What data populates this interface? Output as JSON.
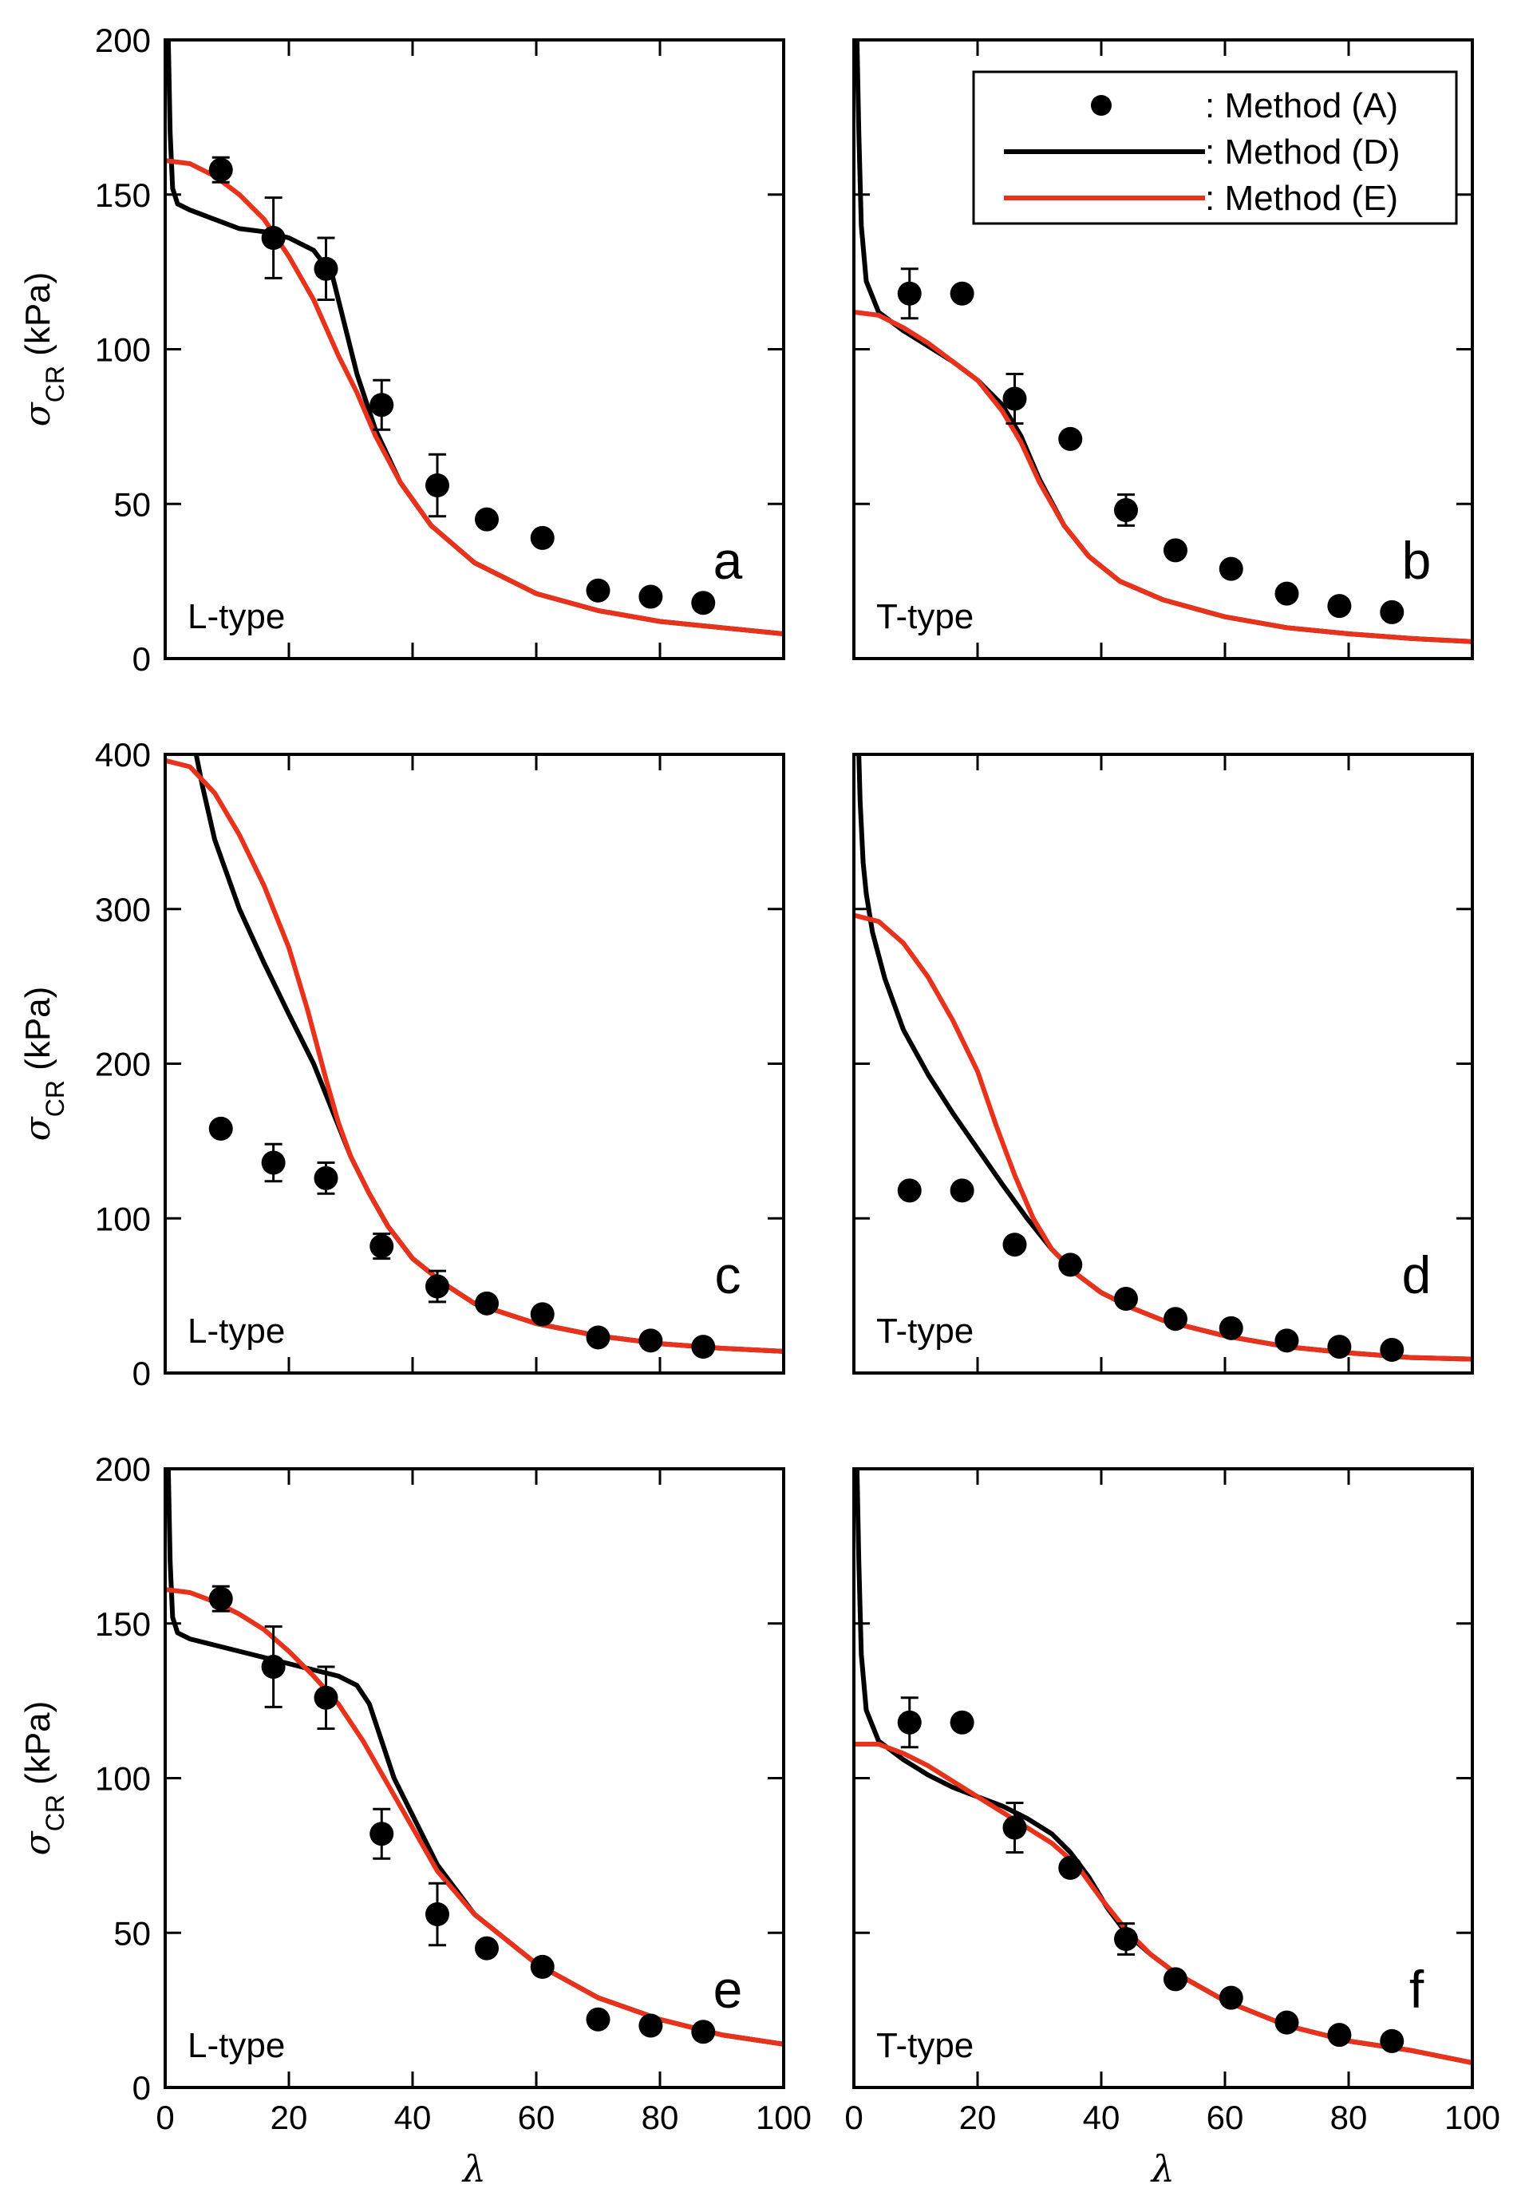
{
  "figure": {
    "legend": [
      {
        "key": "A",
        "label": ": Method (A)",
        "style": "marker",
        "color": "#000000"
      },
      {
        "key": "D",
        "label": ": Method (D)",
        "style": "line",
        "color": "#000000"
      },
      {
        "key": "E",
        "label": ": Method (E)",
        "style": "line",
        "color": "#e8321c"
      }
    ],
    "xlabel": "λ",
    "ylabel_symbol": "σ",
    "ylabel_sub": "CR",
    "ylabel_unit": " (kPa)"
  },
  "chart_data": [
    {
      "panel": "a",
      "type_label": "L-type",
      "chart_type": "line+scatter",
      "xlim": [
        0,
        100
      ],
      "ylim": [
        0,
        200
      ],
      "xticks": [
        0,
        20,
        40,
        60,
        80,
        100
      ],
      "yticks": [
        0,
        50,
        100,
        150,
        200
      ],
      "show_xticklabels": false,
      "show_yticklabels": true,
      "show_legend": false,
      "series": [
        {
          "name": ": Method (A)",
          "kind": "points",
          "x": [
            9,
            17.5,
            26,
            35,
            44,
            52,
            61,
            70,
            78.5,
            87
          ],
          "y": [
            158,
            136,
            126,
            82,
            56,
            45,
            39,
            22,
            20,
            18
          ],
          "err": [
            4,
            13,
            10,
            8,
            10,
            0,
            0,
            0,
            0,
            0
          ]
        },
        {
          "name": ": Method (D)",
          "kind": "line",
          "color": "#000000",
          "x": [
            0.5,
            0.8,
            1.2,
            2,
            4,
            8,
            12,
            16,
            20,
            24,
            27,
            29,
            31,
            34,
            38,
            43,
            50,
            60,
            70,
            80,
            90,
            100
          ],
          "y": [
            200,
            170,
            152,
            147,
            145,
            142,
            139,
            138,
            136,
            132,
            124,
            108,
            92,
            74,
            57,
            43,
            31,
            21,
            15.5,
            12,
            10,
            8
          ]
        },
        {
          "name": ": Method (E)",
          "kind": "line",
          "color": "#e8321c",
          "x": [
            0,
            4,
            8,
            12,
            16,
            20,
            24,
            28,
            31,
            34,
            38,
            43,
            50,
            60,
            70,
            80,
            90,
            100
          ],
          "y": [
            161,
            160,
            156,
            150,
            142,
            130,
            116,
            98,
            86,
            72,
            57,
            43,
            31,
            21,
            15.5,
            12,
            10,
            8
          ]
        }
      ]
    },
    {
      "panel": "b",
      "type_label": "T-type",
      "chart_type": "line+scatter",
      "xlim": [
        0,
        100
      ],
      "ylim": [
        0,
        200
      ],
      "xticks": [
        0,
        20,
        40,
        60,
        80,
        100
      ],
      "yticks": [
        0,
        50,
        100,
        150,
        200
      ],
      "show_xticklabels": false,
      "show_yticklabels": false,
      "show_legend": true,
      "series": [
        {
          "name": ": Method (A)",
          "kind": "points",
          "x": [
            9,
            17.5,
            26,
            35,
            44,
            52,
            61,
            70,
            78.5,
            87
          ],
          "y": [
            118,
            118,
            84,
            71,
            48,
            35,
            29,
            21,
            17,
            15
          ],
          "err": [
            8,
            0,
            8,
            0,
            5,
            0,
            0,
            0,
            0,
            0
          ]
        },
        {
          "name": ": Method (D)",
          "kind": "line",
          "color": "#000000",
          "x": [
            0.5,
            0.8,
            1.2,
            2,
            4,
            8,
            12,
            16,
            20,
            24,
            27,
            30,
            34,
            38,
            43,
            50,
            60,
            70,
            80,
            90,
            100
          ],
          "y": [
            200,
            170,
            140,
            122,
            112,
            106,
            101,
            96,
            90,
            82,
            72,
            58,
            43,
            33,
            25,
            19,
            13.5,
            10,
            8,
            6.5,
            5.5
          ]
        },
        {
          "name": ": Method (E)",
          "kind": "line",
          "color": "#e8321c",
          "x": [
            0,
            4,
            8,
            12,
            16,
            20,
            24,
            27,
            30,
            34,
            38,
            43,
            50,
            60,
            70,
            80,
            90,
            100
          ],
          "y": [
            112,
            111,
            107,
            102,
            96,
            90,
            80,
            70,
            57,
            43,
            33,
            25,
            19,
            13.5,
            10,
            8,
            6.5,
            5.5
          ]
        }
      ]
    },
    {
      "panel": "c",
      "type_label": "L-type",
      "chart_type": "line+scatter",
      "xlim": [
        0,
        100
      ],
      "ylim": [
        0,
        400
      ],
      "xticks": [
        0,
        20,
        40,
        60,
        80,
        100
      ],
      "yticks": [
        0,
        100,
        200,
        300,
        400
      ],
      "show_xticklabels": false,
      "show_yticklabels": true,
      "show_legend": false,
      "series": [
        {
          "name": ": Method (A)",
          "kind": "points",
          "x": [
            9,
            17.5,
            26,
            35,
            44,
            52,
            61,
            70,
            78.5,
            87
          ],
          "y": [
            158,
            136,
            126,
            82,
            56,
            45,
            38,
            23,
            21,
            17
          ],
          "err": [
            0,
            12,
            10,
            8,
            10,
            0,
            0,
            0,
            0,
            0
          ]
        },
        {
          "name": ": Method (D)",
          "kind": "line",
          "color": "#000000",
          "x": [
            5,
            6,
            8,
            12,
            16,
            20,
            24,
            26,
            28,
            30,
            33,
            36,
            40,
            45,
            50,
            60,
            70,
            80,
            90,
            100
          ],
          "y": [
            400,
            380,
            345,
            300,
            265,
            232,
            200,
            180,
            160,
            140,
            116,
            95,
            74,
            58,
            45,
            32,
            24,
            19,
            16,
            14
          ]
        },
        {
          "name": ": Method (E)",
          "kind": "line",
          "color": "#e8321c",
          "x": [
            0,
            4,
            8,
            12,
            16,
            20,
            23,
            26,
            28,
            30,
            33,
            36,
            40,
            45,
            50,
            60,
            70,
            80,
            90,
            100
          ],
          "y": [
            396,
            392,
            375,
            348,
            315,
            275,
            235,
            190,
            162,
            140,
            116,
            95,
            74,
            58,
            45,
            32,
            24,
            19,
            16,
            14
          ]
        }
      ]
    },
    {
      "panel": "d",
      "type_label": "T-type",
      "chart_type": "line+scatter",
      "xlim": [
        0,
        100
      ],
      "ylim": [
        0,
        400
      ],
      "xticks": [
        0,
        20,
        40,
        60,
        80,
        100
      ],
      "yticks": [
        0,
        100,
        200,
        300,
        400
      ],
      "show_xticklabels": false,
      "show_yticklabels": false,
      "show_legend": false,
      "series": [
        {
          "name": ": Method (A)",
          "kind": "points",
          "x": [
            9,
            17.5,
            26,
            35,
            44,
            52,
            61,
            70,
            78.5,
            87
          ],
          "y": [
            118,
            118,
            83,
            70,
            48,
            35,
            29,
            21,
            17,
            15
          ],
          "err": [
            0,
            0,
            0,
            0,
            0,
            0,
            0,
            0,
            0,
            0
          ]
        },
        {
          "name": ": Method (D)",
          "kind": "line",
          "color": "#000000",
          "x": [
            0.8,
            1,
            1.5,
            2,
            3,
            5,
            8,
            12,
            16,
            20,
            24,
            28,
            32,
            36,
            40,
            45,
            50,
            60,
            70,
            80,
            90,
            100
          ],
          "y": [
            400,
            370,
            330,
            310,
            285,
            255,
            222,
            193,
            168,
            145,
            122,
            100,
            80,
            64,
            52,
            42,
            34,
            24,
            17,
            13,
            10,
            9
          ]
        },
        {
          "name": ": Method (E)",
          "kind": "line",
          "color": "#e8321c",
          "x": [
            0,
            4,
            8,
            12,
            16,
            20,
            23,
            26,
            29,
            32,
            36,
            40,
            45,
            50,
            60,
            70,
            80,
            90,
            100
          ],
          "y": [
            296,
            292,
            278,
            256,
            228,
            195,
            160,
            128,
            100,
            80,
            64,
            52,
            42,
            34,
            24,
            17,
            13,
            10,
            9
          ]
        }
      ]
    },
    {
      "panel": "e",
      "type_label": "L-type",
      "chart_type": "line+scatter",
      "xlim": [
        0,
        100
      ],
      "ylim": [
        0,
        200
      ],
      "xticks": [
        0,
        20,
        40,
        60,
        80,
        100
      ],
      "yticks": [
        0,
        50,
        100,
        150,
        200
      ],
      "show_xticklabels": true,
      "show_yticklabels": true,
      "show_legend": false,
      "series": [
        {
          "name": ": Method (A)",
          "kind": "points",
          "x": [
            9,
            17.5,
            26,
            35,
            44,
            52,
            61,
            70,
            78.5,
            87
          ],
          "y": [
            158,
            136,
            126,
            82,
            56,
            45,
            39,
            22,
            20,
            18
          ],
          "err": [
            4,
            13,
            10,
            8,
            10,
            0,
            0,
            0,
            0,
            0
          ]
        },
        {
          "name": ": Method (D)",
          "kind": "line",
          "color": "#000000",
          "x": [
            0.5,
            0.8,
            1.2,
            2,
            4,
            8,
            12,
            16,
            20,
            24,
            28,
            31,
            33,
            35,
            37,
            40,
            44,
            50,
            60,
            70,
            80,
            90,
            100
          ],
          "y": [
            200,
            170,
            152,
            147,
            145,
            143,
            141,
            139,
            137,
            135,
            133,
            130,
            124,
            112,
            100,
            88,
            72,
            56,
            40,
            29,
            22,
            17,
            14
          ]
        },
        {
          "name": ": Method (E)",
          "kind": "line",
          "color": "#e8321c",
          "x": [
            0,
            4,
            8,
            12,
            16,
            20,
            24,
            28,
            32,
            36,
            40,
            44,
            50,
            60,
            70,
            80,
            90,
            100
          ],
          "y": [
            161,
            160,
            157,
            153,
            148,
            141,
            133,
            124,
            112,
            98,
            84,
            70,
            56,
            40,
            29,
            22,
            17,
            14
          ]
        }
      ]
    },
    {
      "panel": "f",
      "type_label": "T-type",
      "chart_type": "line+scatter",
      "xlim": [
        0,
        100
      ],
      "ylim": [
        0,
        200
      ],
      "xticks": [
        0,
        20,
        40,
        60,
        80,
        100
      ],
      "yticks": [
        0,
        50,
        100,
        150,
        200
      ],
      "show_xticklabels": true,
      "show_yticklabels": false,
      "show_legend": false,
      "series": [
        {
          "name": ": Method (A)",
          "kind": "points",
          "x": [
            9,
            17.5,
            26,
            35,
            44,
            52,
            61,
            70,
            78.5,
            87
          ],
          "y": [
            118,
            118,
            84,
            71,
            48,
            35,
            29,
            21,
            17,
            15
          ],
          "err": [
            8,
            0,
            8,
            0,
            5,
            0,
            0,
            0,
            0,
            0
          ]
        },
        {
          "name": ": Method (D)",
          "kind": "line",
          "color": "#000000",
          "x": [
            0.5,
            0.8,
            1.2,
            2,
            4,
            8,
            12,
            16,
            20,
            24,
            28,
            32,
            35,
            38,
            41,
            44,
            48,
            52,
            60,
            70,
            80,
            90,
            100
          ],
          "y": [
            200,
            170,
            140,
            122,
            112,
            106,
            101,
            97,
            94,
            91,
            87,
            82,
            76,
            68,
            58,
            50,
            43,
            37,
            28,
            20,
            15,
            12,
            8
          ]
        },
        {
          "name": ": Method (E)",
          "kind": "line",
          "color": "#e8321c",
          "x": [
            0,
            4,
            8,
            12,
            16,
            20,
            24,
            28,
            32,
            36,
            40,
            44,
            48,
            52,
            60,
            70,
            80,
            90,
            100
          ],
          "y": [
            111,
            111,
            108,
            104,
            99,
            94,
            89,
            84,
            79,
            72,
            61,
            51,
            43,
            37,
            28,
            20,
            15,
            12,
            8
          ]
        }
      ]
    }
  ]
}
